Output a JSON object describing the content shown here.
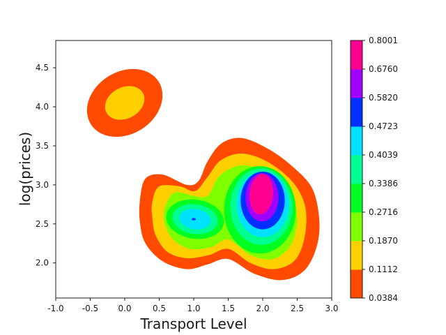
{
  "chart_data": {
    "type": "contour",
    "title": "",
    "xlabel": "Transport Level",
    "ylabel": "log(prices)",
    "xlim": [
      -1.0,
      3.0
    ],
    "ylim": [
      1.55,
      4.85
    ],
    "xticks": [
      "-1.0",
      "-0.5",
      "0.0",
      "0.5",
      "1.0",
      "1.5",
      "2.0",
      "2.5",
      "3.0"
    ],
    "yticks": [
      "2.0",
      "2.5",
      "3.0",
      "3.5",
      "4.0",
      "4.5"
    ],
    "grid": false,
    "levels": [
      0.0384,
      0.1112,
      0.187,
      0.2716,
      0.3386,
      0.4039,
      0.4723,
      0.582,
      0.676,
      0.8001
    ],
    "colorbar_labels": [
      "0.0384",
      "0.1112",
      "0.1870",
      "0.2716",
      "0.3386",
      "0.4039",
      "0.4723",
      "0.5820",
      "0.6760",
      "0.8001"
    ],
    "colors": [
      "#ff4a00",
      "#ffd000",
      "#80ff00",
      "#00ff20",
      "#00ff90",
      "#00e0ff",
      "#0030ff",
      "#a000ff",
      "#ff0090"
    ],
    "density_peaks": [
      {
        "x": 0.0,
        "y": 4.05,
        "value": 0.16
      },
      {
        "x": 1.0,
        "y": 2.55,
        "value": 0.47
      },
      {
        "x": 2.0,
        "y": 2.85,
        "value": 0.8
      }
    ]
  }
}
